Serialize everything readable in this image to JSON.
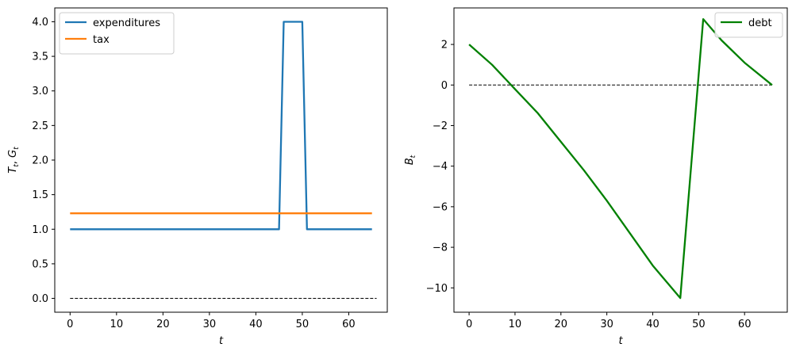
{
  "chart_data": [
    {
      "type": "line",
      "title": "",
      "xlabel": "t",
      "ylabel_main": "T",
      "ylabel_sub1": "t",
      "ylabel_sep": ", ",
      "ylabel_main2": "G",
      "ylabel_sub2": "t",
      "xlim": [
        -3.3,
        68.3
      ],
      "ylim": [
        -0.2,
        4.2
      ],
      "xticks": [
        0,
        10,
        20,
        30,
        40,
        50,
        60
      ],
      "xtick_labels": [
        "0",
        "10",
        "20",
        "30",
        "40",
        "50",
        "60"
      ],
      "yticks": [
        0.0,
        0.5,
        1.0,
        1.5,
        2.0,
        2.5,
        3.0,
        3.5,
        4.0
      ],
      "ytick_labels": [
        "0.0",
        "0.5",
        "1.0",
        "1.5",
        "2.0",
        "2.5",
        "3.0",
        "3.5",
        "4.0"
      ],
      "legend_position": "top-left",
      "grid": false,
      "series": [
        {
          "name": "expenditures",
          "color": "#1f77b4",
          "x": [
            0,
            45,
            46,
            50,
            51,
            65
          ],
          "y": [
            1.0,
            1.0,
            4.0,
            4.0,
            1.0,
            1.0
          ]
        },
        {
          "name": "tax",
          "color": "#ff7f0e",
          "x": [
            0,
            65
          ],
          "y": [
            1.23,
            1.23
          ]
        }
      ],
      "reference_line": {
        "x": [
          0,
          66
        ],
        "y": [
          0,
          0
        ],
        "color": "#000000",
        "style": "dashed"
      }
    },
    {
      "type": "line",
      "title": "",
      "xlabel": "t",
      "ylabel_main": "B",
      "ylabel_sub1": "t",
      "xlim": [
        -3.3,
        69.3
      ],
      "ylim": [
        -11.2,
        3.8
      ],
      "xticks": [
        0,
        10,
        20,
        30,
        40,
        50,
        60
      ],
      "xtick_labels": [
        "0",
        "10",
        "20",
        "30",
        "40",
        "50",
        "60"
      ],
      "yticks": [
        -10,
        -8,
        -6,
        -4,
        -2,
        0,
        2
      ],
      "ytick_labels": [
        "−10",
        "−8",
        "−6",
        "−4",
        "−2",
        "0",
        "2"
      ],
      "legend_position": "top-right",
      "grid": false,
      "series": [
        {
          "name": "debt",
          "color": "#008000",
          "x": [
            0,
            5,
            10,
            15,
            20,
            25,
            30,
            35,
            40,
            46,
            51,
            55,
            60,
            66
          ],
          "y": [
            2.0,
            1.0,
            -0.2,
            -1.4,
            -2.8,
            -4.2,
            -5.7,
            -7.3,
            -8.9,
            -10.5,
            3.25,
            2.2,
            1.1,
            0.0
          ]
        }
      ],
      "reference_line": {
        "x": [
          0,
          66
        ],
        "y": [
          0,
          0
        ],
        "color": "#000000",
        "style": "dashed"
      }
    }
  ]
}
